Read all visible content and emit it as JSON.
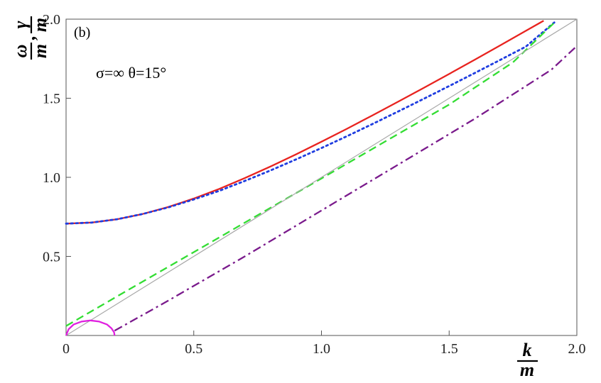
{
  "chart_data": {
    "type": "line",
    "panel_label": "(b)",
    "annotation": "σ=∞   θ=15°",
    "xlabel": {
      "num": "k",
      "den": "m"
    },
    "ylabel": {
      "num1": "ω",
      "den1": "m",
      "sep": ",",
      "num2": "γ",
      "den2": "m"
    },
    "xlim": [
      0,
      2.0
    ],
    "ylim": [
      0,
      2.0
    ],
    "x_ticks": [
      {
        "value": 0,
        "label": "0"
      },
      {
        "value": 0.5,
        "label": "0.5"
      },
      {
        "value": 1.0,
        "label": "1.0"
      },
      {
        "value": 1.5,
        "label": "1.5"
      },
      {
        "value": 2.0,
        "label": "2.0"
      }
    ],
    "y_ticks": [
      {
        "value": 0.5,
        "label": "0.5"
      },
      {
        "value": 1.0,
        "label": "1.0"
      },
      {
        "value": 1.5,
        "label": "1.5"
      },
      {
        "value": 2.0,
        "label": "2.0"
      }
    ],
    "grid": false,
    "series": [
      {
        "style": "solid",
        "color": "#e8231f",
        "x": [
          0,
          0.1,
          0.2,
          0.3,
          0.4,
          0.5,
          0.6,
          0.7,
          0.8,
          0.9,
          1.0,
          1.1,
          1.2,
          1.3,
          1.4,
          1.5,
          1.6,
          1.7,
          1.8,
          1.87
        ],
        "y": [
          0.707,
          0.714,
          0.735,
          0.768,
          0.812,
          0.866,
          0.927,
          0.995,
          1.068,
          1.145,
          1.225,
          1.307,
          1.392,
          1.478,
          1.565,
          1.654,
          1.743,
          1.834,
          1.926,
          1.99
        ]
      },
      {
        "style": "dotted",
        "color": "#1f3de0",
        "x": [
          0,
          0.1,
          0.2,
          0.3,
          0.4,
          0.5,
          0.6,
          0.7,
          0.8,
          0.9,
          1.0,
          1.1,
          1.2,
          1.3,
          1.4,
          1.5,
          1.6,
          1.7,
          1.8,
          1.92
        ],
        "y": [
          0.707,
          0.714,
          0.735,
          0.768,
          0.81,
          0.86,
          0.915,
          0.977,
          1.043,
          1.113,
          1.185,
          1.26,
          1.337,
          1.416,
          1.496,
          1.577,
          1.659,
          1.742,
          1.826,
          1.99
        ]
      },
      {
        "style": "dashed",
        "color": "#33dd33",
        "x": [
          0,
          0.25,
          0.5,
          0.75,
          1.0,
          1.25,
          1.5,
          1.75,
          1.92
        ],
        "y": [
          0.06,
          0.294,
          0.527,
          0.76,
          0.993,
          1.227,
          1.46,
          1.727,
          1.99
        ]
      },
      {
        "style": "dashdot",
        "color": "#7a1a8c",
        "x": [
          0.19,
          0.4,
          0.7,
          1.0,
          1.3,
          1.6,
          1.9,
          2.0
        ],
        "y": [
          0.03,
          0.22,
          0.5,
          0.79,
          1.08,
          1.37,
          1.68,
          1.83
        ]
      },
      {
        "style": "solid",
        "color": "#a8a8a8",
        "x": [
          0,
          2.0
        ],
        "y": [
          0,
          2.0
        ]
      },
      {
        "style": "solid",
        "color": "#e020e0",
        "x": [
          0,
          0.01,
          0.03,
          0.06,
          0.095,
          0.13,
          0.16,
          0.178,
          0.188,
          0.19
        ],
        "y": [
          0,
          0.04,
          0.07,
          0.088,
          0.095,
          0.088,
          0.07,
          0.045,
          0.02,
          0
        ]
      }
    ]
  }
}
